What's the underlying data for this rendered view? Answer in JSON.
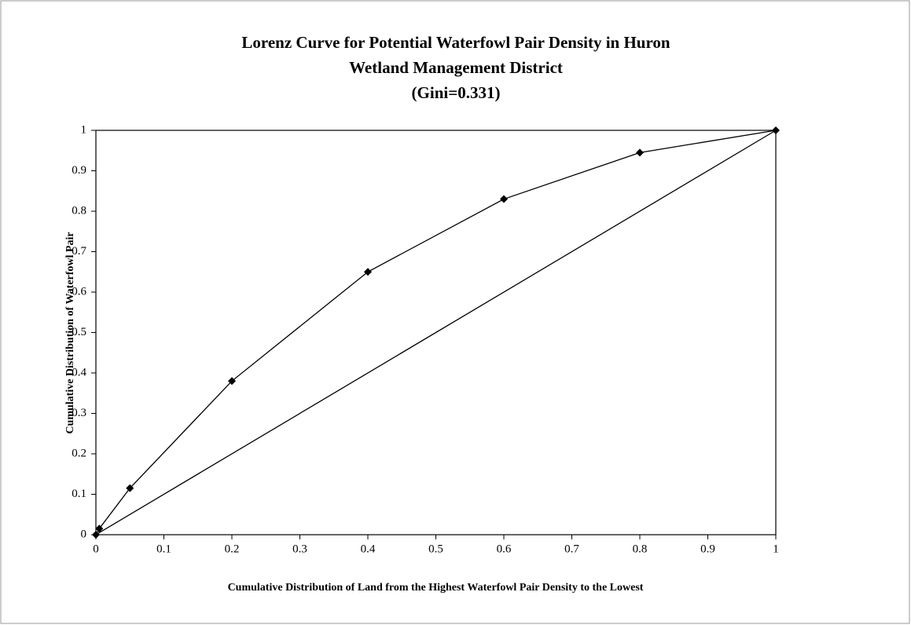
{
  "chart_data": {
    "type": "line",
    "title": [
      "Lorenz Curve for Potential Waterfowl Pair Density in Huron",
      "Wetland Management District",
      "(Gini=0.331)"
    ],
    "xlabel": "Cumulative Distribution of Land from the Highest Waterfowl Pair Density to the Lowest",
    "ylabel": "Cumulative Distribution of Waterfowl Pair",
    "series": [
      {
        "color": "#000000",
        "marker": "diamond",
        "x": [
          0,
          0.005,
          0.05,
          0.2,
          0.4,
          0.6,
          0.8,
          1
        ],
        "values": [
          0,
          0.015,
          0.115,
          0.38,
          0.65,
          0.83,
          0.945,
          1
        ]
      },
      {
        "color": "#000000",
        "x": [
          0,
          1
        ],
        "values": [
          0,
          1
        ]
      }
    ],
    "xlim": [
      0,
      1
    ],
    "xticks": [
      0,
      0.1,
      0.2,
      0.3,
      0.4,
      0.5,
      0.6,
      0.7,
      0.8,
      0.9,
      1
    ],
    "ylim": [
      0,
      1
    ],
    "yticks": [
      0,
      0.1,
      0.2,
      0.3,
      0.4,
      0.5,
      0.6,
      0.7,
      0.8,
      0.9,
      1
    ]
  }
}
